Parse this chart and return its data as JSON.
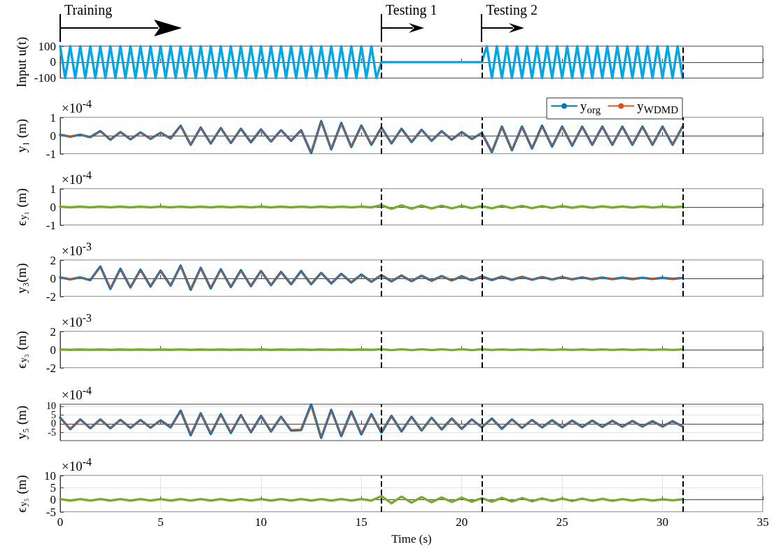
{
  "chart_data": [
    {
      "type": "line",
      "ylabel": "Input u(t)",
      "annotations": [
        "Training",
        "Testing 1",
        "Testing 2"
      ],
      "x": [
        0,
        0.25,
        0.5,
        0.75,
        1,
        1.25,
        1.5,
        1.75,
        2,
        2.25,
        2.5,
        2.75,
        3,
        3.25,
        3.5,
        3.75,
        4,
        4.25,
        4.5,
        4.75,
        5,
        5.25,
        5.5,
        5.75,
        6,
        6.25,
        6.5,
        6.75,
        7,
        7.25,
        7.5,
        7.75,
        8,
        8.25,
        8.5,
        8.75,
        9,
        9.25,
        9.5,
        9.75,
        10,
        10.25,
        10.5,
        10.75,
        11,
        11.25,
        11.5,
        11.75,
        12,
        12.25,
        12.5,
        12.75,
        13,
        13.25,
        13.5,
        13.75,
        14,
        14.25,
        14.5,
        14.75,
        15,
        15.25,
        15.5,
        15.75,
        16,
        21,
        21.25,
        21.5,
        21.75,
        22,
        22.25,
        22.5,
        22.75,
        23,
        23.25,
        23.5,
        23.75,
        24,
        24.25,
        24.5,
        24.75,
        25,
        25.25,
        25.5,
        25.75,
        26,
        26.25,
        26.5,
        26.75,
        27,
        27.25,
        27.5,
        27.75,
        28,
        28.25,
        28.5,
        28.75,
        29,
        29.25,
        29.5,
        29.75,
        30,
        30.25,
        30.5,
        30.75,
        31
      ],
      "series": [
        {
          "color": "#00a6e6",
          "values": [
            100,
            -100,
            100,
            -100,
            100,
            -100,
            100,
            -100,
            100,
            -100,
            100,
            -100,
            100,
            -100,
            100,
            -100,
            100,
            -100,
            100,
            -100,
            100,
            -100,
            100,
            -100,
            100,
            -100,
            100,
            -100,
            100,
            -100,
            100,
            -100,
            100,
            -100,
            100,
            -100,
            100,
            -100,
            100,
            -100,
            100,
            -100,
            100,
            -100,
            100,
            -100,
            100,
            -100,
            100,
            -100,
            100,
            -100,
            100,
            -100,
            100,
            -100,
            100,
            -100,
            100,
            -100,
            100,
            -100,
            100,
            -100,
            0,
            0,
            100,
            -100,
            100,
            -100,
            100,
            -100,
            100,
            -100,
            100,
            -100,
            100,
            -100,
            100,
            -100,
            100,
            -100,
            100,
            -100,
            100,
            -100,
            100,
            -100,
            100,
            -100,
            100,
            -100,
            100,
            -100,
            100,
            -100,
            100,
            -100,
            100,
            -100,
            100,
            -100,
            100,
            -100,
            100,
            -100
          ]
        }
      ],
      "xlim": [
        0,
        35
      ],
      "xticks": [
        0,
        5,
        10,
        15,
        20,
        25,
        30,
        35
      ],
      "ylim": [
        -100,
        100
      ],
      "yticks": [
        -100,
        0,
        100
      ],
      "tick_labels": "y",
      "ref_lines": [
        {
          "axis": "x",
          "value": 16,
          "color": "#000000",
          "line_style": "dashed"
        },
        {
          "axis": "x",
          "value": 21,
          "color": "#000000",
          "line_style": "dashed"
        },
        {
          "axis": "x",
          "value": 31,
          "color": "#000000",
          "line_style": "dashed"
        }
      ]
    },
    {
      "type": "line",
      "ylabel": "y₁ (m)",
      "annotations": [
        "×10$^{-4}$"
      ],
      "x": [
        0,
        0.5,
        1,
        1.5,
        2,
        2.5,
        3,
        3.5,
        4,
        4.5,
        5,
        5.5,
        6,
        6.5,
        7,
        7.5,
        8,
        8.5,
        9,
        9.5,
        10,
        10.5,
        11,
        11.5,
        12,
        12.5,
        13,
        13.5,
        14,
        14.5,
        15,
        15.5,
        16,
        16.5,
        17,
        17.5,
        18,
        18.5,
        19,
        19.5,
        20,
        20.5,
        21,
        21.5,
        22,
        22.5,
        23,
        23.5,
        24,
        24.5,
        25,
        25.5,
        26,
        26.5,
        27,
        27.5,
        28,
        28.5,
        29,
        29.5,
        30,
        30.5,
        31
      ],
      "series": [
        {
          "name": "y$_{org}$",
          "color": "#0072bd",
          "line_style": "solid",
          "values": [
            0.05,
            -0.05,
            0.05,
            -0.08,
            0.25,
            -0.22,
            0.2,
            -0.2,
            0.18,
            -0.17,
            0.16,
            -0.15,
            0.55,
            -0.5,
            0.45,
            -0.43,
            0.42,
            -0.4,
            0.38,
            -0.36,
            0.34,
            -0.32,
            0.3,
            -0.28,
            0.3,
            -0.95,
            0.8,
            -0.75,
            0.7,
            -0.62,
            0.56,
            -0.5,
            0.45,
            -0.42,
            0.38,
            -0.35,
            0.32,
            -0.28,
            0.25,
            -0.22,
            0.2,
            -0.18,
            0.15,
            -0.9,
            0.5,
            -0.8,
            0.5,
            -0.7,
            0.55,
            -0.6,
            0.5,
            -0.55,
            0.5,
            -0.5,
            0.5,
            -0.5,
            0.5,
            -0.5,
            0.5,
            -0.5,
            0.5,
            -0.5,
            0.5
          ]
        },
        {
          "name": "y$_{WDMD}$",
          "color": "#d95319",
          "line_style": "dashed",
          "values": [
            0.04,
            -0.04,
            0.04,
            -0.07,
            0.22,
            -0.2,
            0.18,
            -0.18,
            0.16,
            -0.15,
            0.15,
            -0.14,
            0.5,
            -0.46,
            0.42,
            -0.4,
            0.38,
            -0.37,
            0.35,
            -0.33,
            0.31,
            -0.3,
            0.28,
            -0.26,
            0.28,
            -0.88,
            0.74,
            -0.7,
            0.65,
            -0.58,
            0.52,
            -0.46,
            0.42,
            -0.39,
            0.35,
            -0.32,
            0.3,
            -0.26,
            0.23,
            -0.2,
            0.18,
            -0.16,
            0.14,
            -0.85,
            0.46,
            -0.75,
            0.46,
            -0.65,
            0.5,
            -0.55,
            0.46,
            -0.5,
            0.46,
            -0.46,
            0.46,
            -0.46,
            0.46,
            -0.46,
            0.46,
            -0.46,
            0.46,
            -0.46,
            0.46
          ]
        }
      ],
      "xlim": [
        0,
        35
      ],
      "xticks": [
        0,
        5,
        10,
        15,
        20,
        25,
        30,
        35
      ],
      "ylim": [
        -1,
        1
      ],
      "yticks": [
        -1,
        0,
        1
      ],
      "tick_labels": "y",
      "grid": "y",
      "legend": "top right",
      "ref_lines": [
        {
          "axis": "x",
          "value": 16,
          "color": "#000000",
          "line_style": "dashed"
        },
        {
          "axis": "x",
          "value": 21,
          "color": "#000000",
          "line_style": "dashed"
        },
        {
          "axis": "x",
          "value": 31,
          "color": "#000000",
          "line_style": "dashed"
        }
      ]
    },
    {
      "type": "line",
      "ylabel": "ϵ$_{y₁}$ (m)",
      "annotations": [
        "×10$^{-4}$"
      ],
      "x": [
        0,
        0.5,
        1,
        1.5,
        2,
        2.5,
        3,
        3.5,
        4,
        4.5,
        5,
        5.5,
        6,
        6.5,
        7,
        7.5,
        8,
        8.5,
        9,
        9.5,
        10,
        10.5,
        11,
        11.5,
        12,
        12.5,
        13,
        13.5,
        14,
        14.5,
        15,
        15.5,
        16,
        16.5,
        17,
        17.5,
        18,
        18.5,
        19,
        19.5,
        20,
        20.5,
        21,
        21.5,
        22,
        22.5,
        23,
        23.5,
        24,
        24.5,
        25,
        25.5,
        26,
        26.5,
        27,
        27.5,
        28,
        28.5,
        29,
        29.5,
        30,
        30.5,
        31
      ],
      "series": [
        {
          "color": "#77ac30",
          "values": [
            0.02,
            -0.02,
            0.02,
            -0.02,
            0.02,
            -0.02,
            0.02,
            -0.02,
            0.02,
            -0.02,
            0.02,
            -0.02,
            0.02,
            -0.02,
            0.02,
            -0.02,
            0.02,
            -0.02,
            0.02,
            -0.02,
            0.02,
            -0.02,
            0.02,
            -0.02,
            0.02,
            -0.02,
            0.02,
            -0.02,
            0.02,
            -0.02,
            0.02,
            -0.02,
            0.1,
            -0.1,
            0.09,
            -0.09,
            0.08,
            -0.08,
            0.07,
            -0.07,
            0.06,
            -0.06,
            0.05,
            -0.07,
            0.07,
            -0.06,
            0.06,
            -0.06,
            0.05,
            -0.05,
            0.05,
            -0.04,
            0.04,
            -0.04,
            0.04,
            -0.03,
            0.03,
            -0.03,
            0.03,
            -0.03,
            0.02,
            -0.02,
            0.02
          ]
        }
      ],
      "xlim": [
        0,
        35
      ],
      "xticks": [
        0,
        5,
        10,
        15,
        20,
        25,
        30,
        35
      ],
      "ylim": [
        -1,
        1
      ],
      "yticks": [
        -1,
        0,
        1
      ],
      "tick_labels": "y",
      "grid": "y",
      "ref_lines": [
        {
          "axis": "x",
          "value": 16,
          "color": "#000000",
          "line_style": "dashed"
        },
        {
          "axis": "x",
          "value": 21,
          "color": "#000000",
          "line_style": "dashed"
        },
        {
          "axis": "x",
          "value": 31,
          "color": "#000000",
          "line_style": "dashed"
        }
      ]
    },
    {
      "type": "line",
      "ylabel": "y₃(m)",
      "annotations": [
        "×10$^{-3}$"
      ],
      "x": [
        0,
        0.5,
        1,
        1.5,
        2,
        2.5,
        3,
        3.5,
        4,
        4.5,
        5,
        5.5,
        6,
        6.5,
        7,
        7.5,
        8,
        8.5,
        9,
        9.5,
        10,
        10.5,
        11,
        11.5,
        12,
        12.5,
        13,
        13.5,
        14,
        14.5,
        15,
        15.5,
        16,
        16.5,
        17,
        17.5,
        18,
        18.5,
        19,
        19.5,
        20,
        20.5,
        21,
        21.5,
        22,
        22.5,
        23,
        23.5,
        24,
        24.5,
        25,
        25.5,
        26,
        26.5,
        27,
        27.5,
        28,
        28.5,
        29,
        29.5,
        30,
        30.5,
        31
      ],
      "series": [
        {
          "color": "#0072bd",
          "line_style": "solid",
          "values": [
            0.1,
            -0.1,
            0.1,
            -0.2,
            1.3,
            -1.15,
            1.05,
            -1,
            0.95,
            -0.9,
            0.85,
            -0.8,
            1.4,
            -1.25,
            1.15,
            -1.1,
            1,
            -0.95,
            0.9,
            -0.85,
            0.8,
            -0.75,
            0.7,
            -0.65,
            0.8,
            -0.65,
            0.6,
            -0.55,
            0.5,
            -0.45,
            0.42,
            -0.38,
            0.35,
            -0.33,
            0.31,
            -0.3,
            0.28,
            -0.26,
            0.25,
            -0.23,
            0.22,
            -0.21,
            0.2,
            -0.19,
            0.18,
            -0.17,
            0.16,
            -0.15,
            0.14,
            -0.13,
            0.12,
            -0.11,
            0.1,
            -0.1,
            0.09,
            -0.09,
            0.08,
            -0.08,
            0.07,
            -0.07,
            0.06,
            -0.06,
            0.05
          ]
        },
        {
          "color": "#d95319",
          "line_style": "dashed",
          "values": [
            0.08,
            -0.08,
            0.08,
            -0.18,
            1.2,
            -1.05,
            0.95,
            -0.92,
            0.87,
            -0.82,
            0.78,
            -0.73,
            1.3,
            -1.15,
            1.05,
            -1,
            0.92,
            -0.87,
            0.82,
            -0.78,
            0.73,
            -0.69,
            0.64,
            -0.6,
            0.74,
            -0.6,
            0.55,
            -0.5,
            0.46,
            -0.41,
            0.38,
            -0.35,
            0.32,
            -0.3,
            0.28,
            -0.27,
            0.26,
            -0.24,
            0.23,
            -0.21,
            0.2,
            -0.19,
            0.18,
            -0.17,
            0.16,
            -0.15,
            0.15,
            -0.14,
            0.13,
            -0.12,
            0.11,
            -0.1,
            0.09,
            -0.09,
            0.08,
            -0.08,
            0.07,
            -0.07,
            0.06,
            -0.06,
            0.05,
            -0.05,
            0.04
          ]
        }
      ],
      "xlim": [
        0,
        35
      ],
      "xticks": [
        0,
        5,
        10,
        15,
        20,
        25,
        30,
        35
      ],
      "ylim": [
        -2,
        2
      ],
      "yticks": [
        -2,
        0,
        2
      ],
      "tick_labels": "y",
      "grid": "y",
      "ref_lines": [
        {
          "axis": "x",
          "value": 16,
          "color": "#000000",
          "line_style": "dashed"
        },
        {
          "axis": "x",
          "value": 21,
          "color": "#000000",
          "line_style": "dashed"
        },
        {
          "axis": "x",
          "value": 31,
          "color": "#000000",
          "line_style": "dashed"
        }
      ]
    },
    {
      "type": "line",
      "ylabel": "ϵ$_{y₃}$ (m)",
      "annotations": [
        "×10$^{-3}$"
      ],
      "x": [
        0,
        0.5,
        1,
        1.5,
        2,
        2.5,
        3,
        3.5,
        4,
        4.5,
        5,
        5.5,
        6,
        6.5,
        7,
        7.5,
        8,
        8.5,
        9,
        9.5,
        10,
        10.5,
        11,
        11.5,
        12,
        12.5,
        13,
        13.5,
        14,
        14.5,
        15,
        15.5,
        16,
        16.5,
        17,
        17.5,
        18,
        18.5,
        19,
        19.5,
        20,
        20.5,
        21,
        21.5,
        22,
        22.5,
        23,
        23.5,
        24,
        24.5,
        25,
        25.5,
        26,
        26.5,
        27,
        27.5,
        28,
        28.5,
        29,
        29.5,
        30,
        30.5,
        31
      ],
      "series": [
        {
          "color": "#77ac30",
          "values": [
            0.02,
            -0.02,
            0.02,
            -0.02,
            0.02,
            -0.02,
            0.02,
            -0.02,
            0.02,
            -0.02,
            0.02,
            -0.02,
            0.02,
            -0.02,
            0.02,
            -0.02,
            0.02,
            -0.02,
            0.02,
            -0.02,
            0.02,
            -0.02,
            0.02,
            -0.02,
            0.02,
            -0.02,
            0.02,
            -0.02,
            0.02,
            -0.02,
            0.02,
            -0.02,
            0.05,
            -0.05,
            0.05,
            -0.05,
            0.05,
            -0.05,
            0.05,
            -0.05,
            0.05,
            -0.05,
            0.05,
            -0.03,
            0.03,
            -0.03,
            0.03,
            -0.03,
            0.03,
            -0.03,
            0.03,
            -0.03,
            0.03,
            -0.03,
            0.03,
            -0.03,
            0.03,
            -0.03,
            0.03,
            -0.03,
            0.03,
            -0.03,
            0.03
          ]
        }
      ],
      "xlim": [
        0,
        35
      ],
      "xticks": [
        0,
        5,
        10,
        15,
        20,
        25,
        30,
        35
      ],
      "ylim": [
        -2,
        2
      ],
      "yticks": [
        -2,
        0,
        2
      ],
      "tick_labels": "y",
      "grid": "y",
      "ref_lines": [
        {
          "axis": "x",
          "value": 16,
          "color": "#000000",
          "line_style": "dashed"
        },
        {
          "axis": "x",
          "value": 21,
          "color": "#000000",
          "line_style": "dashed"
        },
        {
          "axis": "x",
          "value": 31,
          "color": "#000000",
          "line_style": "dashed"
        }
      ]
    },
    {
      "type": "line",
      "ylabel": "y₅ (m)",
      "annotations": [
        "×10$^{-4}$"
      ],
      "x": [
        0,
        0.5,
        1,
        1.5,
        2,
        2.5,
        3,
        3.5,
        4,
        4.5,
        5,
        5.5,
        6,
        6.5,
        7,
        7.5,
        8,
        8.5,
        9,
        9.5,
        10,
        10.5,
        11,
        11.5,
        12,
        12.5,
        13,
        13.5,
        14,
        14.5,
        15,
        15.5,
        16,
        16.5,
        17,
        17.5,
        18,
        18.5,
        19,
        19.5,
        20,
        20.5,
        21,
        21.5,
        22,
        22.5,
        23,
        23.5,
        24,
        24.5,
        25,
        25.5,
        26,
        26.5,
        27,
        27.5,
        28,
        28.5,
        29,
        29.5,
        30,
        30.5,
        31
      ],
      "series": [
        {
          "color": "#0072bd",
          "line_style": "solid",
          "values": [
            3.5,
            -3,
            2.5,
            -2.5,
            2.5,
            -2.5,
            2.3,
            -2.3,
            2.2,
            -2.2,
            2,
            -2,
            7.5,
            -6.5,
            6,
            -5.8,
            5.5,
            -5.2,
            5,
            -4.8,
            4.5,
            -4.3,
            4,
            -3.8,
            -3.5,
            11,
            -8,
            8,
            -7,
            7,
            -6,
            5.5,
            -5,
            4.5,
            -4.3,
            4,
            -3.8,
            3.5,
            -3.2,
            3,
            -2.8,
            2.5,
            -2,
            3,
            -2.8,
            2.5,
            -2.3,
            2.2,
            -2,
            2,
            -2,
            1.8,
            -1.8,
            1.8,
            -1.7,
            1.7,
            -1.6,
            1.6,
            -1.5,
            1.5,
            -1.5,
            1.5,
            -1.5
          ]
        },
        {
          "color": "#d95319",
          "line_style": "dashed",
          "values": [
            3,
            -2.6,
            2.2,
            -2.2,
            2.2,
            -2.2,
            2,
            -2,
            1.9,
            -1.9,
            1.8,
            -1.8,
            6.8,
            -5.9,
            5.4,
            -5.2,
            5,
            -4.7,
            4.5,
            -4.3,
            4.1,
            -3.9,
            3.6,
            -3.4,
            -3.2,
            10,
            -7.2,
            7.2,
            -6.3,
            6.3,
            -5.4,
            5,
            -4.5,
            4.1,
            -3.9,
            3.6,
            -3.4,
            3.2,
            -2.9,
            2.7,
            -2.5,
            2.2,
            -1.8,
            2.7,
            -2.5,
            2.2,
            -2.1,
            2,
            -1.8,
            1.8,
            -1.8,
            1.6,
            -1.6,
            1.6,
            -1.5,
            1.5,
            -1.4,
            1.4,
            -1.3,
            1.3,
            -1.3,
            1.3,
            -1.3
          ]
        }
      ],
      "xlim": [
        0,
        35
      ],
      "xticks": [
        0,
        5,
        10,
        15,
        20,
        25,
        30,
        35
      ],
      "ylim": [
        -9.6,
        11.2
      ],
      "yticks": [
        -5,
        0,
        5,
        10
      ],
      "tick_labels": "y",
      "grid": "y",
      "ref_lines": [
        {
          "axis": "x",
          "value": 16,
          "color": "#000000",
          "line_style": "dashed"
        },
        {
          "axis": "x",
          "value": 21,
          "color": "#000000",
          "line_style": "dashed"
        },
        {
          "axis": "x",
          "value": 31,
          "color": "#000000",
          "line_style": "dashed"
        }
      ]
    },
    {
      "type": "line",
      "ylabel": "ϵ$_{y₅}$ (m)",
      "xlabel": "Time (s)",
      "annotations": [
        "×10$^{-4}$"
      ],
      "x": [
        0,
        0.5,
        1,
        1.5,
        2,
        2.5,
        3,
        3.5,
        4,
        4.5,
        5,
        5.5,
        6,
        6.5,
        7,
        7.5,
        8,
        8.5,
        9,
        9.5,
        10,
        10.5,
        11,
        11.5,
        12,
        12.5,
        13,
        13.5,
        14,
        14.5,
        15,
        15.5,
        16,
        16.5,
        17,
        17.5,
        18,
        18.5,
        19,
        19.5,
        20,
        20.5,
        21,
        21.5,
        22,
        22.5,
        23,
        23.5,
        24,
        24.5,
        25,
        25.5,
        26,
        26.5,
        27,
        27.5,
        28,
        28.5,
        29,
        29.5,
        30,
        30.5,
        31
      ],
      "series": [
        {
          "color": "#77ac30",
          "values": [
            0.3,
            -0.3,
            0.3,
            -0.3,
            0.3,
            -0.3,
            0.3,
            -0.3,
            0.3,
            -0.3,
            0.3,
            -0.3,
            0.3,
            -0.3,
            0.3,
            -0.3,
            0.3,
            -0.3,
            0.3,
            -0.3,
            0.3,
            -0.3,
            0.3,
            -0.3,
            0.3,
            -0.3,
            0.3,
            -0.3,
            0.3,
            -0.3,
            0.3,
            -0.3,
            1.5,
            -1.4,
            1.3,
            -1.2,
            1.1,
            -1,
            1,
            -0.9,
            0.8,
            -0.8,
            0.7,
            -0.8,
            0.8,
            -0.7,
            0.7,
            -0.6,
            0.6,
            -0.5,
            0.5,
            -0.5,
            0.5,
            -0.4,
            0.4,
            -0.4,
            0.3,
            -0.3,
            0.3,
            -0.3,
            0.2,
            -0.2,
            0.2
          ]
        }
      ],
      "xlim": [
        0,
        35
      ],
      "xticks": [
        0,
        5,
        10,
        15,
        20,
        25,
        30,
        35
      ],
      "ylim": [
        -5,
        10
      ],
      "yticks": [
        -5,
        0,
        5,
        10
      ],
      "grid": true,
      "ref_lines": [
        {
          "axis": "x",
          "value": 16,
          "color": "#000000",
          "line_style": "dashed"
        },
        {
          "axis": "x",
          "value": 21,
          "color": "#000000",
          "line_style": "dashed"
        },
        {
          "axis": "x",
          "value": 31,
          "color": "#000000",
          "line_style": "dashed"
        }
      ]
    }
  ]
}
